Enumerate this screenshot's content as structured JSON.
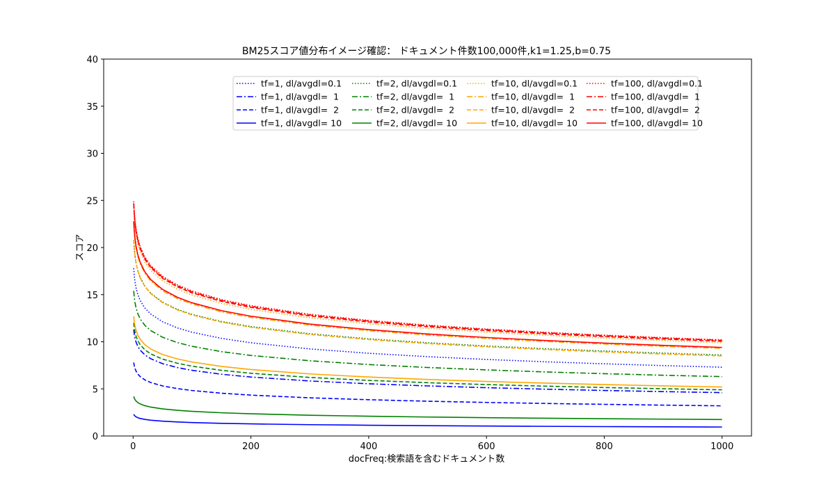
{
  "chart_data": {
    "type": "line",
    "title": "BM25スコア値分布イメージ確認： ドキュメント件数100,000件,k1=1.25,b=0.75",
    "xlabel": "docFreq:検索語を含むドキュメント数",
    "ylabel": "スコア",
    "xlim": [
      -50,
      1050
    ],
    "ylim": [
      0,
      40
    ],
    "x_ticks": [
      0,
      200,
      400,
      600,
      800,
      1000
    ],
    "y_ticks": [
      0,
      5,
      10,
      15,
      20,
      25,
      30,
      35,
      40
    ],
    "grid": false,
    "legend_position": "top",
    "x_sample": [
      1,
      2,
      3,
      5,
      8,
      12,
      20,
      30,
      50,
      75,
      100,
      150,
      200,
      300,
      400,
      500,
      600,
      700,
      800,
      900,
      1000
    ],
    "series": [
      {
        "name": "tf=1, dl/avgdl=0.1",
        "color": "#0000ff",
        "dash": "dotted",
        "peak": 17.8,
        "end": 7.3
      },
      {
        "name": "tf=1, dl/avgdl=  1",
        "color": "#0000ff",
        "dash": "dashdot",
        "peak": 11.3,
        "end": 4.6
      },
      {
        "name": "tf=1, dl/avgdl=  2",
        "color": "#0000ff",
        "dash": "dashed",
        "peak": 7.8,
        "end": 3.2
      },
      {
        "name": "tf=1, dl/avgdl= 10",
        "color": "#0000ff",
        "dash": "solid",
        "peak": 2.3,
        "end": 0.95
      },
      {
        "name": "tf=2, dl/avgdl=0.1",
        "color": "#008000",
        "dash": "dotted",
        "peak": 20.8,
        "end": 8.6
      },
      {
        "name": "tf=2, dl/avgdl=  1",
        "color": "#008000",
        "dash": "dashdot",
        "peak": 15.4,
        "end": 6.3
      },
      {
        "name": "tf=2, dl/avgdl=  2",
        "color": "#008000",
        "dash": "dashed",
        "peak": 12.0,
        "end": 4.9
      },
      {
        "name": "tf=2, dl/avgdl= 10",
        "color": "#008000",
        "dash": "solid",
        "peak": 4.2,
        "end": 1.75
      },
      {
        "name": "tf=10, dl/avgdl=0.1",
        "color": "#ffa500",
        "dash": "dotted",
        "peak": 24.2,
        "end": 9.9
      },
      {
        "name": "tf=10, dl/avgdl=  1",
        "color": "#ffa500",
        "dash": "dashdot",
        "peak": 22.6,
        "end": 9.3
      },
      {
        "name": "tf=10, dl/avgdl=  2",
        "color": "#ffa500",
        "dash": "dashed",
        "peak": 20.8,
        "end": 8.5
      },
      {
        "name": "tf=10, dl/avgdl= 10",
        "color": "#ffa500",
        "dash": "solid",
        "peak": 12.7,
        "end": 5.2
      },
      {
        "name": "tf=100, dl/avgdl=0.1",
        "color": "#ff0000",
        "dash": "dotted",
        "peak": 24.9,
        "end": 10.2
      },
      {
        "name": "tf=100, dl/avgdl=  1",
        "color": "#ff0000",
        "dash": "dashdot",
        "peak": 24.7,
        "end": 10.15
      },
      {
        "name": "tf=100, dl/avgdl=  2",
        "color": "#ff0000",
        "dash": "dashed",
        "peak": 24.6,
        "end": 10.05
      },
      {
        "name": "tf=100, dl/avgdl= 10",
        "color": "#ff0000",
        "dash": "solid",
        "peak": 22.8,
        "end": 9.4
      }
    ]
  }
}
